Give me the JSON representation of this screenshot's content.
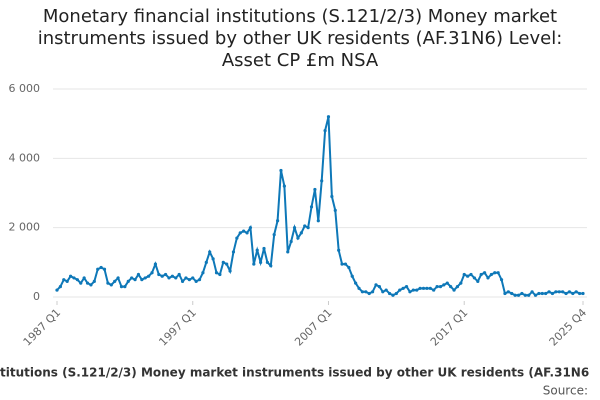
{
  "chart_data": {
    "type": "line",
    "title": "Monetary financial institutions (S.121/2/3) Money market instruments issued by other UK residents (AF.31N6) Level: Asset CP £m NSA",
    "footer": "titutions (S.121/2/3) Money market instruments issued by other UK residents (AF.31N6",
    "source": "Source:",
    "categories": [
      "1987 Q1",
      null,
      null,
      null,
      null,
      null,
      null,
      null,
      null,
      null,
      null,
      null,
      null,
      null,
      null,
      null,
      null,
      null,
      null,
      null,
      null,
      null,
      null,
      null,
      null,
      null,
      null,
      null,
      null,
      null,
      null,
      null,
      null,
      null,
      null,
      null,
      null,
      null,
      null,
      null,
      "1997 Q1",
      null,
      null,
      null,
      null,
      null,
      null,
      null,
      null,
      null,
      null,
      null,
      null,
      null,
      null,
      null,
      null,
      null,
      null,
      null,
      null,
      null,
      null,
      null,
      null,
      null,
      null,
      null,
      null,
      null,
      null,
      null,
      null,
      null,
      null,
      null,
      null,
      null,
      null,
      null,
      "2007 Q1",
      null,
      null,
      null,
      null,
      null,
      null,
      null,
      null,
      null,
      null,
      null,
      null,
      null,
      null,
      null,
      null,
      null,
      null,
      null,
      null,
      null,
      null,
      null,
      null,
      null,
      null,
      null,
      null,
      null,
      null,
      null,
      null,
      null,
      null,
      null,
      null,
      null,
      null,
      null,
      "2017 Q1",
      null,
      null,
      null,
      null,
      null,
      null,
      null,
      null,
      null,
      null,
      null,
      null,
      null,
      null,
      null,
      null,
      null,
      null,
      null,
      null,
      null,
      null,
      null,
      null,
      null,
      null,
      null,
      null,
      null,
      null,
      null,
      null,
      null,
      null,
      "2025 Q4"
    ],
    "series": [
      {
        "color": "#0e78b8",
        "values": [
          200,
          300,
          500,
          450,
          600,
          550,
          500,
          400,
          550,
          400,
          350,
          450,
          800,
          850,
          800,
          400,
          350,
          450,
          550,
          300,
          300,
          450,
          550,
          500,
          650,
          500,
          550,
          600,
          700,
          950,
          650,
          600,
          650,
          550,
          600,
          550,
          650,
          450,
          550,
          500,
          550,
          450,
          500,
          700,
          1000,
          1300,
          1100,
          700,
          650,
          1000,
          950,
          750,
          1300,
          1700,
          1850,
          1900,
          1850,
          2000,
          950,
          1350,
          1000,
          1400,
          1000,
          900,
          1800,
          2200,
          3650,
          3200,
          1300,
          1600,
          2000,
          1700,
          1850,
          2050,
          2000,
          2600,
          3100,
          2200,
          3350,
          4800,
          5200,
          2900,
          2500,
          1350,
          950,
          950,
          850,
          600,
          400,
          250,
          150,
          150,
          100,
          150,
          350,
          300,
          150,
          200,
          100,
          50,
          100,
          200,
          250,
          300,
          150,
          200,
          200,
          250,
          250,
          250,
          250,
          200,
          300,
          300,
          350,
          400,
          300,
          200,
          300,
          400,
          650,
          600,
          650,
          550,
          450,
          650,
          700,
          550,
          650,
          700,
          700,
          500,
          100,
          150,
          100,
          50,
          50,
          100,
          50,
          50,
          150,
          50,
          100,
          100,
          100,
          150,
          100,
          150,
          150,
          150,
          100,
          150,
          100,
          150,
          100,
          100
        ]
      }
    ],
    "ylim": [
      0,
      6000
    ],
    "yticks": [
      0,
      {
        "value": 2000,
        "label": "2 000"
      },
      {
        "value": 4000,
        "label": "4 000"
      },
      {
        "value": 6000,
        "label": "6 000"
      }
    ],
    "grid": true
  }
}
